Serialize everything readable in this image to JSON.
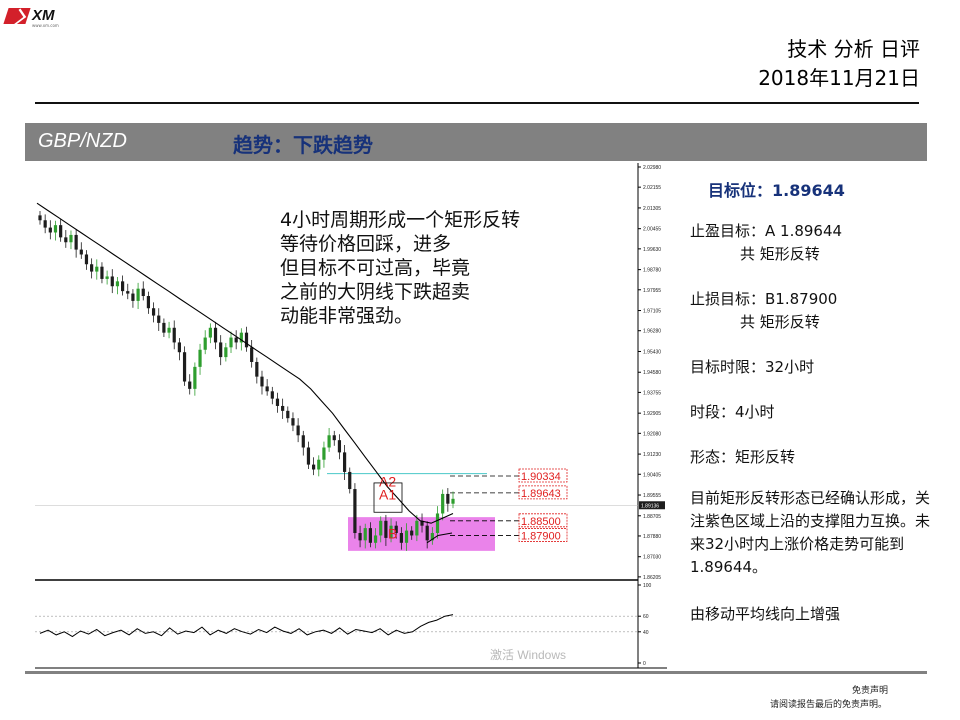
{
  "header": {
    "logo_text": "XM",
    "logo_sub": "www.xm.com",
    "title": "技术 分析 日评",
    "date": "2018年11月21日"
  },
  "band": {
    "pair": "GBP/NZD",
    "trend": "趋势：下跌趋势"
  },
  "note_lines": [
    "4小时周期形成一个矩形反转",
    "等待价格回踩，进多",
    "但目标不可过高，毕竟",
    "之前的大阴线下跌超卖",
    "动能非常强劲。"
  ],
  "side": {
    "target": "目标位：1.89644",
    "tp_line1": "止盈目标：A 1.89644",
    "tp_line2": "共 矩形反转",
    "sl_line1": "止损目标：B1.87900",
    "sl_line2": "共 矩形反转",
    "time_limit": "目标时限：32小时",
    "period": "时段：4小时",
    "pattern": "形态：矩形反转",
    "desc": "目前矩形反转形态已经确认形成，关注紫色区域上沿的支撑阻力互换。未来32小时内上涨价格走势可能到1.89644。",
    "ma_note": "由移动平均线向上增强"
  },
  "footer": {
    "disclaimer_title": "免责声明",
    "disclaimer_text": "请阅读报告最后的免责声明。"
  },
  "watermark": "激活 Windows",
  "colors": {
    "band_bg": "#818181",
    "trend_text": "#17327a",
    "candle_up": "#2e9e2e",
    "candle_down": "#1d1d1d",
    "zone": "#e66de6",
    "label_red": "#e02020",
    "cyan_line": "#48c8c8"
  },
  "chart_data": {
    "type": "candlestick",
    "symbol": "GBP/NZD",
    "timeframe": "4小时",
    "y_ticks": [
      "2.02980",
      "2.02155",
      "2.01305",
      "2.00455",
      "1.99630",
      "1.98780",
      "1.97955",
      "1.97105",
      "1.96280",
      "1.95430",
      "1.94580",
      "1.93755",
      "1.92905",
      "1.92080",
      "1.91230",
      "1.90405",
      "1.89555",
      "1.88705",
      "1.87880",
      "1.87030",
      "1.86205"
    ],
    "ylim": [
      1.862,
      2.0298
    ],
    "current_price": "1.89136",
    "levels": [
      {
        "label": "1.90334",
        "value": 1.90334
      },
      {
        "label": "1.89643",
        "value": 1.89643
      },
      {
        "label": "1.88500",
        "value": 1.885
      },
      {
        "label": "1.87900",
        "value": 1.879
      }
    ],
    "zone": {
      "top": 1.8865,
      "bottom": 1.8727
    },
    "point_labels": [
      "A2",
      "A1",
      "B"
    ],
    "closes": [
      2.008,
      2.005,
      2.003,
      2.006,
      2.001,
      1.999,
      2.002,
      1.996,
      1.994,
      1.99,
      1.987,
      1.989,
      1.984,
      1.985,
      1.981,
      1.983,
      1.979,
      1.978,
      1.975,
      1.98,
      1.977,
      1.972,
      1.969,
      1.966,
      1.962,
      1.964,
      1.958,
      1.954,
      1.942,
      1.939,
      1.948,
      1.955,
      1.96,
      1.964,
      1.958,
      1.952,
      1.956,
      1.96,
      1.958,
      1.962,
      1.956,
      1.95,
      1.944,
      1.94,
      1.938,
      1.935,
      1.932,
      1.93,
      1.927,
      1.924,
      1.92,
      1.915,
      1.908,
      1.906,
      1.91,
      1.915,
      1.92,
      1.918,
      1.913,
      1.905,
      1.898,
      1.88,
      1.877,
      1.882,
      1.876,
      1.879,
      1.885,
      1.878,
      1.883,
      1.88,
      1.876,
      1.881,
      1.879,
      1.885,
      1.883,
      1.877,
      1.88,
      1.888,
      1.896,
      1.892,
      1.894
    ],
    "ma": [
      2.015,
      2.012,
      2.009,
      2.006,
      2.003,
      2.0,
      1.997,
      1.994,
      1.991,
      1.988,
      1.985,
      1.982,
      1.979,
      1.976,
      1.973,
      1.97,
      1.967,
      1.964,
      1.961,
      1.958,
      1.955,
      1.952,
      1.949,
      1.946,
      1.943,
      1.939,
      1.934,
      1.929,
      1.923,
      1.917,
      1.911,
      1.905,
      1.899,
      1.894,
      1.889,
      1.885,
      1.884,
      1.886,
      1.888
    ],
    "oscillator": {
      "ylim": [
        0,
        100
      ],
      "ticks": [
        "100",
        "60",
        "40",
        "0"
      ],
      "values": [
        38,
        42,
        36,
        40,
        34,
        41,
        37,
        43,
        35,
        39,
        42,
        36,
        44,
        38,
        40,
        35,
        45,
        37,
        41,
        39,
        46,
        36,
        42,
        38,
        44,
        40,
        37,
        43,
        39,
        46,
        41,
        38,
        44,
        36,
        40,
        42,
        38,
        45,
        37,
        43,
        41,
        39,
        44,
        36,
        42,
        38,
        40,
        47,
        52,
        55,
        60,
        62
      ]
    }
  }
}
